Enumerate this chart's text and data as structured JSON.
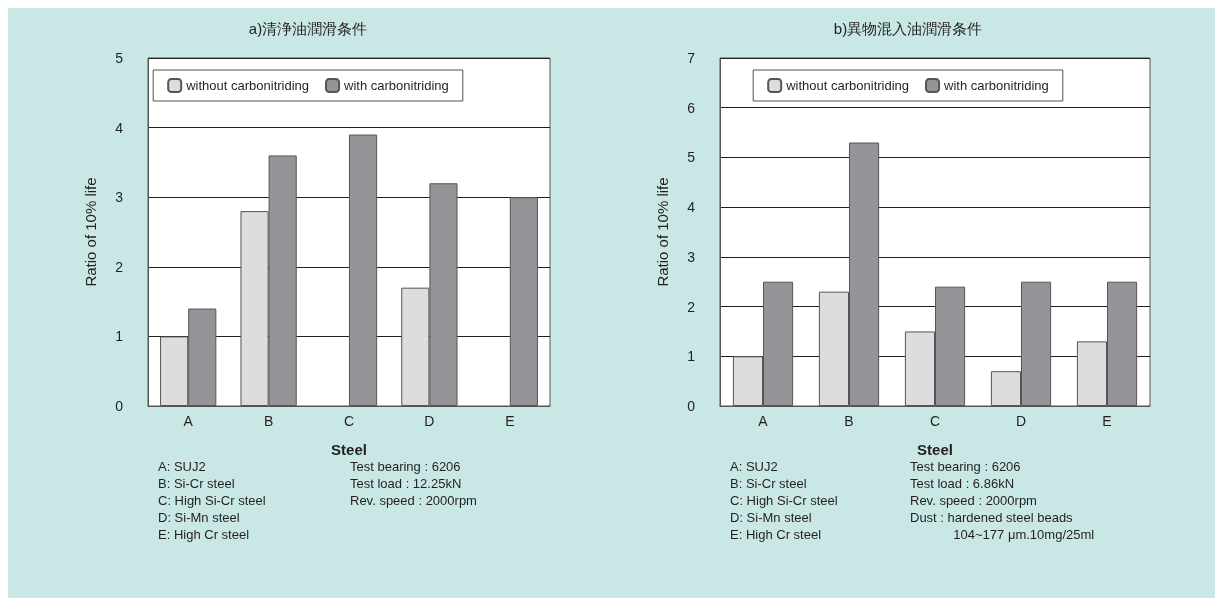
{
  "chart_data": [
    {
      "type": "bar",
      "title": "a)清浄油潤滑条件",
      "xlabel": "Steel",
      "ylabel": "Ratio of 10% life",
      "categories": [
        "A",
        "B",
        "C",
        "D",
        "E"
      ],
      "series": [
        {
          "name": "without carbonitriding",
          "color": "#dcdddf",
          "values": [
            1.0,
            2.8,
            null,
            1.7,
            null
          ]
        },
        {
          "name": "with carbonitriding",
          "color": "#939598",
          "values": [
            1.4,
            3.6,
            3.9,
            3.2,
            3.0
          ]
        }
      ],
      "ylim": [
        0,
        5
      ],
      "yticks": [
        0,
        1,
        2,
        3,
        4,
        5
      ],
      "grid": "y",
      "legend": "top",
      "annotations": [
        "A: SUJ2\nB: Si-Cr steel\nC: High Si-Cr steel\nD: Si-Mn steel\nE: High Cr steel",
        "Test bearing : 6206\nTest load : 12.25kN\nRev. speed : 2000rpm"
      ]
    },
    {
      "type": "bar",
      "title": "b)異物混入油潤滑条件",
      "xlabel": "Steel",
      "ylabel": "Ratio of 10% life",
      "categories": [
        "A",
        "B",
        "C",
        "D",
        "E"
      ],
      "series": [
        {
          "name": "without carbonitriding",
          "color": "#dcdddf",
          "values": [
            1.0,
            2.3,
            1.5,
            0.7,
            1.3
          ]
        },
        {
          "name": "with carbonitriding",
          "color": "#939598",
          "values": [
            2.5,
            5.3,
            2.4,
            2.5,
            2.5
          ]
        }
      ],
      "ylim": [
        0,
        7
      ],
      "yticks": [
        0,
        1,
        2,
        3,
        4,
        5,
        6,
        7
      ],
      "grid": "y",
      "legend": "top",
      "annotations": [
        "A: SUJ2\nB: Si-Cr steel\nC: High Si-Cr steel\nD: Si-Mn steel\nE: High Cr steel",
        "Test bearing : 6206\nTest load : 6.86kN\nRev. speed : 2000rpm\nDust : hardened steel beads\n            104~177 μm.10mg/25ml"
      ]
    }
  ]
}
